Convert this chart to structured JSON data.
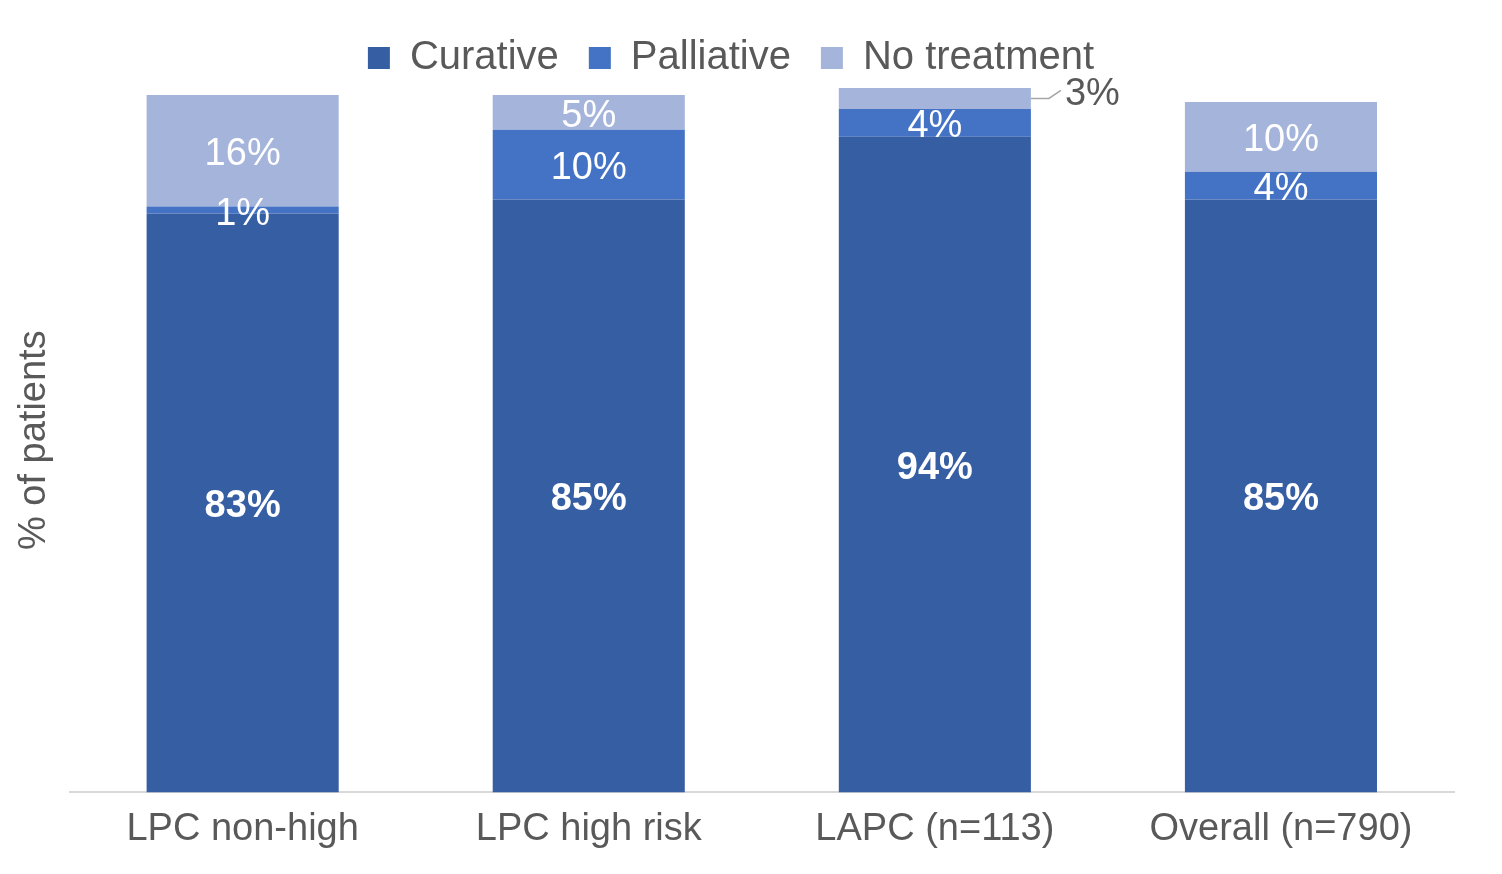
{
  "chart_data": {
    "type": "bar",
    "stacked": true,
    "ylabel": "% of patients",
    "categories": [
      "LPC non-high",
      "LPC high risk",
      "LAPC (n=113)",
      "Overall (n=790)"
    ],
    "series": [
      {
        "name": "Curative",
        "color": "#365ea3",
        "values": [
          83,
          85,
          94,
          85
        ],
        "value_labels": [
          "83%",
          "85%",
          "94%",
          "85%"
        ]
      },
      {
        "name": "Palliative",
        "color": "#4472c4",
        "values": [
          1,
          10,
          4,
          4
        ],
        "value_labels": [
          "1%",
          "10%",
          "4%",
          "4%"
        ]
      },
      {
        "name": "No treatment",
        "color": "#a5b4da",
        "values": [
          16,
          5,
          3,
          10
        ],
        "value_labels": [
          "16%",
          "5%",
          "3%",
          "10%"
        ]
      }
    ],
    "legend": "top",
    "grid": false
  }
}
